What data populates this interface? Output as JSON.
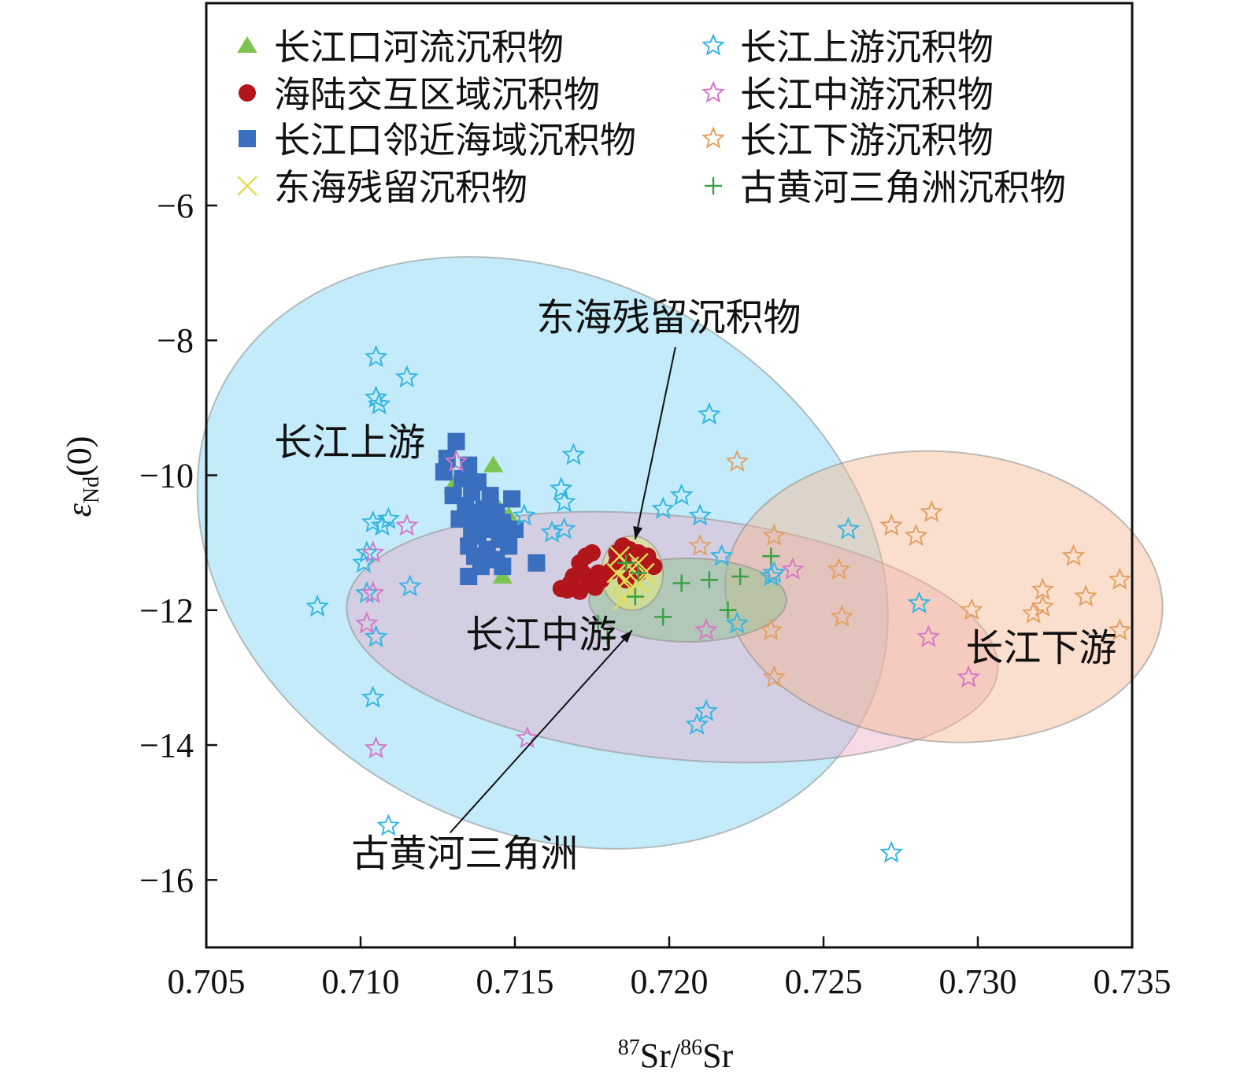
{
  "chart_data": {
    "type": "scatter",
    "xlabel": {
      "sup1": "87",
      "base1": "Sr/",
      "sup2": "86",
      "base2": "Sr"
    },
    "ylabel": {
      "symbol": "ε",
      "sub": "Nd",
      "rest": "(0)"
    },
    "xlim": [
      0.705,
      0.735
    ],
    "ylim": [
      -17,
      -3
    ],
    "xticks": [
      0.705,
      0.71,
      0.715,
      0.72,
      0.725,
      0.73,
      0.735
    ],
    "xtick_labels": [
      "0.705",
      "0.710",
      "0.715",
      "0.720",
      "0.725",
      "0.730",
      "0.735"
    ],
    "yticks": [
      -6,
      -8,
      -10,
      -12,
      -14,
      -16
    ],
    "ytick_labels": [
      "−6",
      "−8",
      "−10",
      "−12",
      "−14",
      "−16"
    ],
    "grid": false,
    "legend_position": "top",
    "regions": [
      {
        "name": "upper",
        "cx": 0.7159,
        "cy": -11.15,
        "rx": 0.0117,
        "ry": 4.1,
        "angle": -27,
        "color": "#8ad8f4",
        "opacity": 0.5
      },
      {
        "name": "middle",
        "cx": 0.7201,
        "cy": -12.4,
        "rx": 0.0106,
        "ry": 1.8,
        "angle": -6,
        "color": "#e7a6c2",
        "opacity": 0.42
      },
      {
        "name": "lower",
        "cx": 0.7289,
        "cy": -11.8,
        "rx": 0.0071,
        "ry": 2.15,
        "angle": -5,
        "color": "#f7b793",
        "opacity": 0.45
      },
      {
        "name": "yellow_river",
        "cx": 0.7206,
        "cy": -11.85,
        "rx": 0.0032,
        "ry": 0.62,
        "angle": 0,
        "color": "#8fc28f",
        "opacity": 0.5
      },
      {
        "name": "ecs",
        "cx": 0.7188,
        "cy": -11.45,
        "rx": 0.001,
        "ry": 0.55,
        "angle": 0,
        "color": "#e4ed7e",
        "opacity": 0.55
      }
    ],
    "series": [
      {
        "name": "长江口河流沉积物",
        "marker": "triangle",
        "color": "#7cc451",
        "points": [
          [
            0.7143,
            -9.85
          ],
          [
            0.713,
            -10.15
          ],
          [
            0.7145,
            -10.5
          ],
          [
            0.7148,
            -10.6
          ],
          [
            0.7146,
            -11.5
          ],
          [
            0.7174,
            -11.65
          ]
        ]
      },
      {
        "name": "海陆交互区域沉积物",
        "marker": "circle",
        "color": "#b2151a",
        "points": [
          [
            0.7171,
            -11.3
          ],
          [
            0.7173,
            -11.2
          ],
          [
            0.7175,
            -11.15
          ],
          [
            0.7169,
            -11.5
          ],
          [
            0.7172,
            -11.45
          ],
          [
            0.7177,
            -11.45
          ],
          [
            0.7168,
            -11.6
          ],
          [
            0.7174,
            -11.6
          ],
          [
            0.7178,
            -11.55
          ],
          [
            0.7167,
            -11.7
          ],
          [
            0.7171,
            -11.72
          ],
          [
            0.7176,
            -11.66
          ],
          [
            0.7165,
            -11.68
          ],
          [
            0.7183,
            -11.3
          ],
          [
            0.7185,
            -11.05
          ],
          [
            0.7187,
            -11.1
          ],
          [
            0.719,
            -11.15
          ],
          [
            0.7192,
            -11.3
          ],
          [
            0.7185,
            -11.25
          ],
          [
            0.7188,
            -11.4
          ],
          [
            0.7195,
            -11.35
          ],
          [
            0.7181,
            -11.42
          ],
          [
            0.719,
            -11.45
          ],
          [
            0.7183,
            -11.15
          ],
          [
            0.7193,
            -11.2
          ],
          [
            0.7186,
            -11.55
          ]
        ]
      },
      {
        "name": "长江口邻近海域沉积物",
        "marker": "square",
        "color": "#3a6fbf",
        "points": [
          [
            0.7131,
            -9.5
          ],
          [
            0.7128,
            -9.75
          ],
          [
            0.7135,
            -9.85
          ],
          [
            0.7127,
            -9.95
          ],
          [
            0.7133,
            -10.05
          ],
          [
            0.7138,
            -10.1
          ],
          [
            0.713,
            -10.3
          ],
          [
            0.7136,
            -10.25
          ],
          [
            0.7142,
            -10.3
          ],
          [
            0.7134,
            -10.45
          ],
          [
            0.714,
            -10.5
          ],
          [
            0.7137,
            -10.55
          ],
          [
            0.7144,
            -10.55
          ],
          [
            0.7132,
            -10.65
          ],
          [
            0.7139,
            -10.7
          ],
          [
            0.7146,
            -10.7
          ],
          [
            0.7136,
            -10.8
          ],
          [
            0.7142,
            -10.8
          ],
          [
            0.715,
            -10.8
          ],
          [
            0.7138,
            -10.9
          ],
          [
            0.7145,
            -10.95
          ],
          [
            0.7135,
            -11.05
          ],
          [
            0.7141,
            -11.1
          ],
          [
            0.7148,
            -11.05
          ],
          [
            0.7137,
            -11.2
          ],
          [
            0.7144,
            -11.25
          ],
          [
            0.7139,
            -11.35
          ],
          [
            0.7146,
            -11.35
          ],
          [
            0.7135,
            -11.5
          ],
          [
            0.7157,
            -11.3
          ],
          [
            0.7149,
            -10.35
          ]
        ]
      },
      {
        "name": "东海残留沉积物",
        "marker": "x",
        "color": "#e1dd55",
        "points": [
          [
            0.7184,
            -11.2
          ],
          [
            0.7187,
            -11.35
          ],
          [
            0.719,
            -11.3
          ],
          [
            0.7186,
            -11.55
          ],
          [
            0.7192,
            -11.45
          ],
          [
            0.7188,
            -11.7
          ],
          [
            0.7185,
            -11.85
          ],
          [
            0.719,
            -11.6
          ],
          [
            0.7183,
            -11.45
          ]
        ]
      },
      {
        "name": "长江上游沉积物",
        "marker": "star",
        "color": "#36b6e2",
        "points": [
          [
            0.7105,
            -8.25
          ],
          [
            0.7115,
            -8.55
          ],
          [
            0.7105,
            -8.85
          ],
          [
            0.7106,
            -8.95
          ],
          [
            0.7213,
            -9.1
          ],
          [
            0.7169,
            -9.7
          ],
          [
            0.7165,
            -10.2
          ],
          [
            0.7166,
            -10.4
          ],
          [
            0.7204,
            -10.3
          ],
          [
            0.7198,
            -10.5
          ],
          [
            0.7153,
            -10.6
          ],
          [
            0.721,
            -10.6
          ],
          [
            0.7104,
            -10.7
          ],
          [
            0.7109,
            -10.65
          ],
          [
            0.7107,
            -10.75
          ],
          [
            0.7162,
            -10.85
          ],
          [
            0.7166,
            -10.8
          ],
          [
            0.7258,
            -10.8
          ],
          [
            0.7102,
            -11.15
          ],
          [
            0.7101,
            -11.3
          ],
          [
            0.7217,
            -11.2
          ],
          [
            0.7234,
            -11.45
          ],
          [
            0.7233,
            -11.5
          ],
          [
            0.7102,
            -11.75
          ],
          [
            0.7116,
            -11.65
          ],
          [
            0.7086,
            -11.95
          ],
          [
            0.7281,
            -11.9
          ],
          [
            0.7222,
            -12.2
          ],
          [
            0.7105,
            -12.4
          ],
          [
            0.7104,
            -13.3
          ],
          [
            0.7212,
            -13.5
          ],
          [
            0.7209,
            -13.7
          ],
          [
            0.7109,
            -15.2
          ],
          [
            0.7272,
            -15.6
          ]
        ]
      },
      {
        "name": "长江中游沉积物",
        "marker": "star",
        "color": "#d877c7",
        "points": [
          [
            0.7131,
            -9.8
          ],
          [
            0.7115,
            -10.75
          ],
          [
            0.7104,
            -11.15
          ],
          [
            0.7104,
            -11.75
          ],
          [
            0.724,
            -11.4
          ],
          [
            0.7102,
            -12.2
          ],
          [
            0.7212,
            -12.3
          ],
          [
            0.7284,
            -12.4
          ],
          [
            0.7297,
            -13.0
          ],
          [
            0.7154,
            -13.9
          ],
          [
            0.7105,
            -14.05
          ]
        ]
      },
      {
        "name": "长江下游沉积物",
        "marker": "star",
        "color": "#e3a063",
        "points": [
          [
            0.7222,
            -9.8
          ],
          [
            0.7285,
            -10.55
          ],
          [
            0.7272,
            -10.75
          ],
          [
            0.728,
            -10.9
          ],
          [
            0.7234,
            -10.9
          ],
          [
            0.721,
            -11.05
          ],
          [
            0.7331,
            -11.2
          ],
          [
            0.7255,
            -11.4
          ],
          [
            0.7346,
            -11.55
          ],
          [
            0.7321,
            -11.7
          ],
          [
            0.7335,
            -11.8
          ],
          [
            0.7321,
            -11.95
          ],
          [
            0.7318,
            -12.05
          ],
          [
            0.7298,
            -12.0
          ],
          [
            0.7256,
            -12.1
          ],
          [
            0.7233,
            -12.3
          ],
          [
            0.7346,
            -12.3
          ],
          [
            0.7234,
            -13.0
          ]
        ]
      },
      {
        "name": "古黄河三角洲沉积物",
        "marker": "plus",
        "color": "#3aa045",
        "points": [
          [
            0.7186,
            -11.3
          ],
          [
            0.719,
            -11.45
          ],
          [
            0.7213,
            -11.55
          ],
          [
            0.7223,
            -11.5
          ],
          [
            0.7204,
            -11.6
          ],
          [
            0.7233,
            -11.2
          ],
          [
            0.7189,
            -11.8
          ],
          [
            0.7219,
            -12.0
          ],
          [
            0.7198,
            -12.1
          ],
          [
            0.7177,
            -12.2
          ],
          [
            0.718,
            -12.4
          ]
        ]
      }
    ],
    "annotations": [
      {
        "text": "长江上游",
        "x": 0.7072,
        "y": -9.7
      },
      {
        "text": "长江中游",
        "x": 0.7134,
        "y": -12.55
      },
      {
        "text": "长江下游",
        "x": 0.7296,
        "y": -12.75
      },
      {
        "text": "东海残留沉积物",
        "x": 0.7157,
        "y": -7.85
      },
      {
        "text": "古黄河三角洲",
        "x": 0.7097,
        "y": -15.8
      }
    ],
    "arrows": [
      {
        "x1": 0.7202,
        "y1": -8.1,
        "x2": 0.7189,
        "y2": -10.95
      },
      {
        "x1": 0.7129,
        "y1": -15.3,
        "x2": 0.7188,
        "y2": -12.3
      }
    ]
  }
}
